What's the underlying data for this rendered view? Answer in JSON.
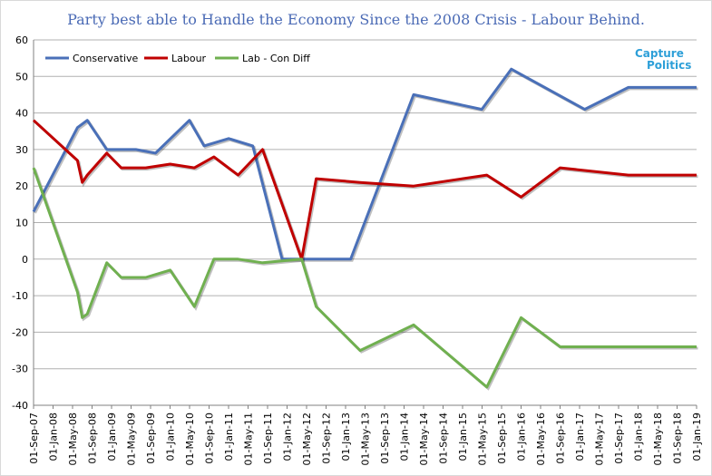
{
  "title": "Party best able to Handle the Economy Since the 2008 Crisis - Labour Behind.",
  "logo": {
    "line1": "Capture",
    "line2": "Politics"
  },
  "colors": {
    "conservative": "#4a70b8",
    "labour": "#c00000",
    "diff": "#70b050",
    "grid": "#b0b0b0",
    "axis": "#808080"
  },
  "chart_data": {
    "type": "line",
    "title": "Party best able to Handle the Economy Since the 2008 Crisis - Labour Behind.",
    "xlabel": "",
    "ylabel": "",
    "ylim": [
      -40,
      60
    ],
    "yticks": [
      60,
      50,
      40,
      30,
      20,
      10,
      0,
      -10,
      -20,
      -30,
      -40
    ],
    "grid": true,
    "legend_position": "top-left",
    "x_range": [
      "2007-09-01",
      "2019-01-01"
    ],
    "x_tick_labels": [
      "01-Sep-07",
      "01-Jan-08",
      "01-May-08",
      "01-Sep-08",
      "01-Jan-09",
      "01-May-09",
      "01-Sep-09",
      "01-Jan-10",
      "01-May-10",
      "01-Sep-10",
      "01-Jan-11",
      "01-May-11",
      "01-Sep-11",
      "01-Jan-12",
      "01-May-12",
      "01-Sep-12",
      "01-Jan-13",
      "01-May-13",
      "01-Sep-13",
      "01-Jan-14",
      "01-May-14",
      "01-Sep-14",
      "01-Jan-15",
      "01-May-15",
      "01-Sep-15",
      "01-Jan-16",
      "01-May-16",
      "01-Sep-16",
      "01-Jan-17",
      "01-May-17",
      "01-Sep-17",
      "01-Jan-18",
      "01-May-18",
      "01-Sep-18",
      "01-Jan-19"
    ],
    "series": [
      {
        "name": "Conservative",
        "color": "#4a70b8",
        "x": [
          "2007-09-01",
          "2008-06-01",
          "2008-08-01",
          "2008-12-01",
          "2009-06-01",
          "2009-10-01",
          "2010-05-01",
          "2010-08-01",
          "2011-01-01",
          "2011-06-01",
          "2011-12-01",
          "2012-06-01",
          "2012-11-01",
          "2013-02-01",
          "2014-03-01",
          "2015-05-01",
          "2015-11-01",
          "2017-02-01",
          "2017-11-01",
          "2019-01-01"
        ],
        "values": [
          13,
          36,
          38,
          30,
          30,
          29,
          38,
          31,
          33,
          31,
          0,
          0,
          0,
          0,
          45,
          41,
          52,
          41,
          47,
          47
        ]
      },
      {
        "name": "Labour",
        "color": "#c00000",
        "x": [
          "2007-09-01",
          "2008-06-01",
          "2008-07-01",
          "2008-08-01",
          "2008-12-01",
          "2009-03-01",
          "2009-08-01",
          "2010-01-01",
          "2010-06-01",
          "2010-10-01",
          "2011-03-01",
          "2011-08-01",
          "2012-04-01",
          "2012-07-01",
          "2013-04-01",
          "2014-03-01",
          "2015-06-01",
          "2016-01-01",
          "2016-09-01",
          "2017-11-01",
          "2019-01-01"
        ],
        "values": [
          38,
          27,
          21,
          23,
          29,
          25,
          25,
          26,
          25,
          28,
          23,
          30,
          0,
          22,
          21,
          20,
          23,
          17,
          25,
          23,
          23
        ]
      },
      {
        "name": "Lab - Con Diff",
        "color": "#70b050",
        "x": [
          "2007-09-01",
          "2008-06-01",
          "2008-07-01",
          "2008-08-01",
          "2008-12-01",
          "2009-03-01",
          "2009-08-01",
          "2010-01-01",
          "2010-06-01",
          "2010-10-01",
          "2011-03-01",
          "2011-08-01",
          "2012-04-01",
          "2012-07-01",
          "2013-04-01",
          "2014-03-01",
          "2015-06-01",
          "2016-01-01",
          "2016-09-01",
          "2017-11-01",
          "2019-01-01"
        ],
        "values": [
          25,
          -9,
          -16,
          -15,
          -1,
          -5,
          -5,
          -3,
          -13,
          0,
          0,
          -1,
          0,
          -13,
          -25,
          -18,
          -35,
          -16,
          -24,
          -24,
          -24
        ]
      }
    ]
  }
}
